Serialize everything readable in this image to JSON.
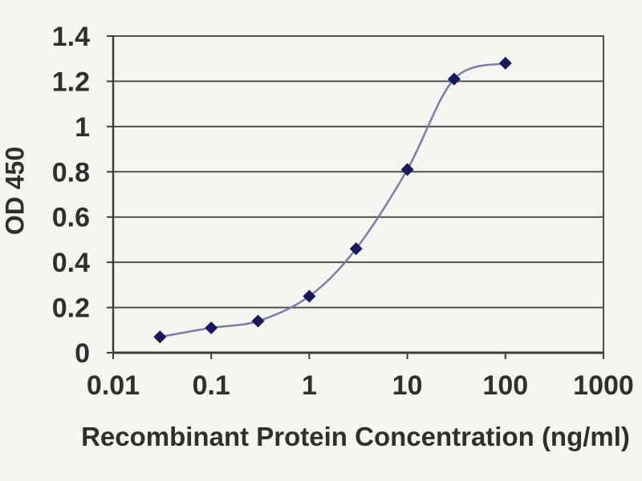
{
  "chart_data": {
    "type": "line",
    "xlabel": "Recombinant Protein Concentration (ng/ml)",
    "ylabel": "OD 450",
    "x_scale": "log",
    "x": [
      0.03,
      0.1,
      0.3,
      1,
      3,
      10,
      30,
      100
    ],
    "values": [
      0.07,
      0.11,
      0.14,
      0.25,
      0.46,
      0.81,
      1.21,
      1.28
    ],
    "xlim": [
      0.01,
      1000
    ],
    "ylim": [
      0,
      1.4
    ],
    "x_tick_labels": [
      "0.01",
      "0.1",
      "1",
      "10",
      "100",
      "1000"
    ],
    "x_tick_values": [
      0.01,
      0.1,
      1,
      10,
      100,
      1000
    ],
    "y_tick_labels": [
      "0",
      "0.2",
      "0.4",
      "0.6",
      "0.8",
      "1",
      "1.2",
      "1.4"
    ],
    "y_tick_values": [
      0,
      0.2,
      0.4,
      0.6,
      0.8,
      1,
      1.2,
      1.4
    ],
    "grid": "horizontal",
    "legend_position": "none",
    "marker": "diamond",
    "line_smoothing": true,
    "colors": {
      "line": "#7b7bb0",
      "marker": "#18185f",
      "grid": "#4f4f4f",
      "axis": "#3d3d3d",
      "text": "#2f2f2f",
      "background": "#f6f6f1"
    }
  }
}
